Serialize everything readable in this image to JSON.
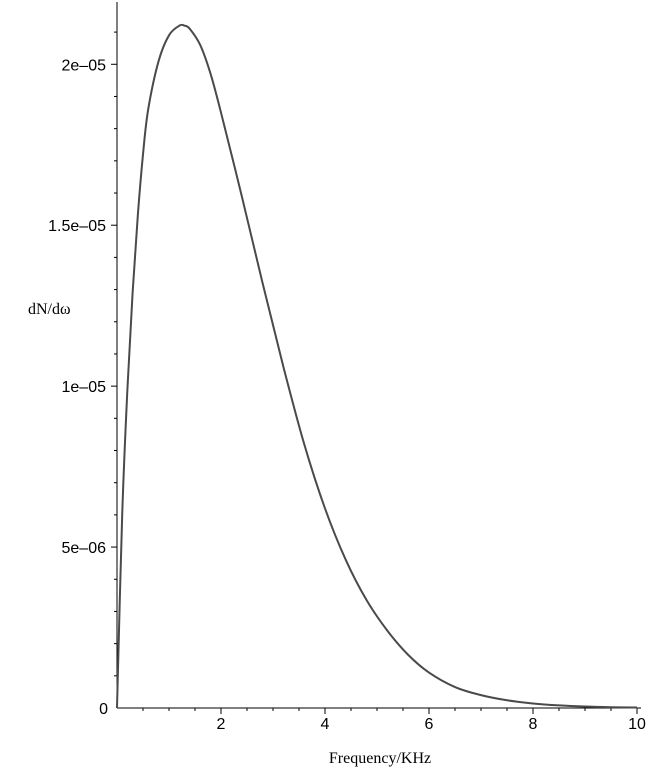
{
  "chart_data": {
    "type": "line",
    "title": "",
    "xlabel": "Frequency/KHz",
    "ylabel": "dN/dω",
    "xlim": [
      0,
      10
    ],
    "ylim": [
      0,
      2.15e-05
    ],
    "x_ticks": [
      {
        "value": 2,
        "label": "2"
      },
      {
        "value": 4,
        "label": "4"
      },
      {
        "value": 6,
        "label": "6"
      },
      {
        "value": 8,
        "label": "8"
      },
      {
        "value": 10,
        "label": "10"
      }
    ],
    "y_ticks": [
      {
        "value": 0,
        "label": "0"
      },
      {
        "value": 5e-06,
        "label": "5e–06"
      },
      {
        "value": 1e-05,
        "label": "1e–05"
      },
      {
        "value": 1.5e-05,
        "label": "1.5e–05"
      },
      {
        "value": 2e-05,
        "label": "2e–05"
      }
    ],
    "grid": false,
    "line_color": "#4a4a4a",
    "series": [
      {
        "x": [
          0,
          0.1,
          0.2,
          0.3,
          0.4,
          0.5,
          0.6,
          0.8,
          1.0,
          1.2,
          1.3,
          1.4,
          1.6,
          1.8,
          2.0,
          2.4,
          2.8,
          3.2,
          3.6,
          4.0,
          4.4,
          4.8,
          5.2,
          5.6,
          6.0,
          6.5,
          7.0,
          7.5,
          8.0,
          8.5,
          9.0,
          9.5,
          10.0
        ],
        "y": [
          0,
          6e-06,
          9.9e-06,
          1.29e-05,
          1.53e-05,
          1.72e-05,
          1.86e-05,
          2.01e-05,
          2.09e-05,
          2.12e-05,
          2.12e-05,
          2.11e-05,
          2.06e-05,
          1.97e-05,
          1.85e-05,
          1.59e-05,
          1.32e-05,
          1.06e-05,
          8.2e-06,
          6.2e-06,
          4.6e-06,
          3.35e-06,
          2.4e-06,
          1.65e-06,
          1.1e-06,
          6.5e-07,
          4e-07,
          2.4e-07,
          1.4e-07,
          8e-08,
          4.5e-08,
          2.5e-08,
          1.5e-08
        ]
      }
    ]
  }
}
